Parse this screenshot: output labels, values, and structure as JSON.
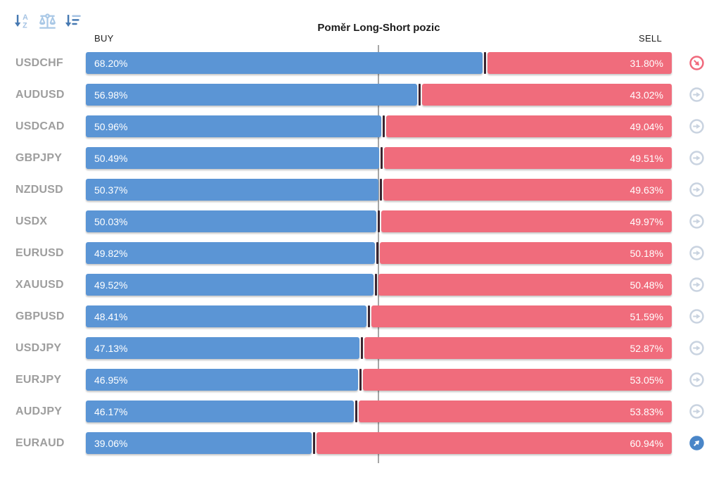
{
  "title": "Poměr Long-Short pozic",
  "columns": {
    "buy": "BUY",
    "sell": "SELL"
  },
  "toolbar": {
    "icons": [
      {
        "name": "sort-alphabetical-icon"
      },
      {
        "name": "balance-scale-icon"
      },
      {
        "name": "sort-amount-icon"
      }
    ]
  },
  "colors": {
    "buy_bar": "#5B95D5",
    "sell_bar": "#F06C7C",
    "bar_divider": "#3a2530",
    "center_line": "#a6a6a6",
    "pair_label": "#9e9e9e",
    "trend": {
      "down": "#F0697C",
      "neutral": "#C9D3E0",
      "up": "#4A86C8"
    }
  },
  "chart_data": {
    "type": "bar",
    "orientation": "horizontal",
    "stacked": true,
    "title": "Poměr Long-Short pozic",
    "xlabel": "",
    "ylabel": "",
    "xlim": [
      0,
      100
    ],
    "grid": false,
    "legend_position": "top (BUY left, SELL right)",
    "center_marker_percent": 50,
    "categories": [
      "USDCHF",
      "AUDUSD",
      "USDCAD",
      "GBPJPY",
      "NZDUSD",
      "USDX",
      "EURUSD",
      "XAUUSD",
      "GBPUSD",
      "USDJPY",
      "EURJPY",
      "AUDJPY",
      "EURAUD"
    ],
    "series": [
      {
        "name": "BUY",
        "values": [
          68.2,
          56.98,
          50.96,
          50.49,
          50.37,
          50.03,
          49.82,
          49.52,
          48.41,
          47.13,
          46.95,
          46.17,
          39.06
        ]
      },
      {
        "name": "SELL",
        "values": [
          31.8,
          43.02,
          49.04,
          49.51,
          49.63,
          49.97,
          50.18,
          50.48,
          51.59,
          52.87,
          53.05,
          53.83,
          60.94
        ]
      }
    ],
    "rows": [
      {
        "pair": "USDCHF",
        "buy": 68.2,
        "sell": 31.8,
        "trend": "down"
      },
      {
        "pair": "AUDUSD",
        "buy": 56.98,
        "sell": 43.02,
        "trend": "neutral"
      },
      {
        "pair": "USDCAD",
        "buy": 50.96,
        "sell": 49.04,
        "trend": "neutral"
      },
      {
        "pair": "GBPJPY",
        "buy": 50.49,
        "sell": 49.51,
        "trend": "neutral"
      },
      {
        "pair": "NZDUSD",
        "buy": 50.37,
        "sell": 49.63,
        "trend": "neutral"
      },
      {
        "pair": "USDX",
        "buy": 50.03,
        "sell": 49.97,
        "trend": "neutral"
      },
      {
        "pair": "EURUSD",
        "buy": 49.82,
        "sell": 50.18,
        "trend": "neutral"
      },
      {
        "pair": "XAUUSD",
        "buy": 49.52,
        "sell": 50.48,
        "trend": "neutral"
      },
      {
        "pair": "GBPUSD",
        "buy": 48.41,
        "sell": 51.59,
        "trend": "neutral"
      },
      {
        "pair": "USDJPY",
        "buy": 47.13,
        "sell": 52.87,
        "trend": "neutral"
      },
      {
        "pair": "EURJPY",
        "buy": 46.95,
        "sell": 53.05,
        "trend": "neutral"
      },
      {
        "pair": "AUDJPY",
        "buy": 46.17,
        "sell": 53.83,
        "trend": "neutral"
      },
      {
        "pair": "EURAUD",
        "buy": 39.06,
        "sell": 60.94,
        "trend": "up"
      }
    ]
  }
}
